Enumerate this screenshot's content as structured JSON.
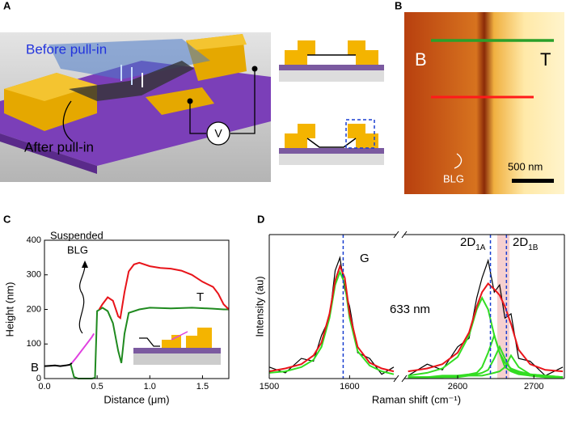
{
  "panel_labels": [
    "A",
    "B",
    "C",
    "D"
  ],
  "panel_a": {
    "before": "Before pull-in",
    "after": "After pull-in",
    "source": "V"
  },
  "panel_b": {
    "left": "B",
    "right": "T",
    "material": "BLG",
    "scale": "500 nm"
  },
  "chart_data": [
    {
      "type": "line",
      "xlabel": "Distance (μm)",
      "ylabel": "Height (nm)",
      "annotations": {
        "suspended": [
          "Suspended",
          "BLG"
        ],
        "left": "B",
        "right": "T"
      },
      "xlim": [
        0,
        1.75
      ],
      "xticks": [
        {
          "value": 0,
          "label": "0.0"
        },
        0.5,
        {
          "value": 1,
          "label": "1.0"
        },
        1.5
      ],
      "ylim": [
        0,
        400
      ],
      "yticks": [
        0,
        100,
        200,
        300,
        400
      ],
      "series": [
        {
          "color": "#000000",
          "x": [
            0,
            0.05,
            0.1,
            0.15,
            0.2,
            0.24,
            0.26
          ],
          "values": [
            36,
            37,
            38,
            36,
            38,
            40,
            45
          ]
        },
        {
          "color": "#1f8a1f",
          "x": [
            0.25,
            0.28,
            0.32,
            0.45,
            0.48,
            0.5,
            0.55,
            0.6,
            0.65,
            0.7,
            0.73,
            0.76,
            0.8,
            0.9,
            1.0,
            1.2,
            1.4,
            1.6,
            1.7,
            1.75
          ],
          "values": [
            40,
            5,
            0,
            0,
            2,
            195,
            205,
            195,
            160,
            80,
            45,
            130,
            190,
            200,
            205,
            203,
            205,
            202,
            200,
            200
          ]
        },
        {
          "color": "#e8141a",
          "x": [
            0.52,
            0.55,
            0.6,
            0.65,
            0.7,
            0.72,
            0.76,
            0.8,
            0.85,
            0.9,
            1.0,
            1.1,
            1.2,
            1.3,
            1.4,
            1.5,
            1.6,
            1.65,
            1.7,
            1.75
          ],
          "values": [
            200,
            215,
            235,
            225,
            180,
            175,
            250,
            310,
            330,
            335,
            325,
            320,
            318,
            312,
            300,
            280,
            265,
            245,
            215,
            200
          ]
        },
        {
          "color": "#e040e0",
          "x": [
            0.26,
            0.3,
            0.35,
            0.4,
            0.45,
            0.47
          ],
          "values": [
            45,
            60,
            80,
            100,
            120,
            130
          ]
        }
      ]
    },
    {
      "type": "spectrum",
      "xlabel": "Raman shift (cm⁻¹)",
      "ylabel": "Intensity (au)",
      "annotations": {
        "g": "G",
        "d1a": {
          "text": "2D",
          "sub": "1A"
        },
        "d1b": {
          "text": "2D",
          "sub": "1B"
        },
        "laser": "633 nm"
      },
      "segments": [
        {
          "xlim": [
            1500,
            1658
          ],
          "xticks": [
            1500,
            1600
          ]
        },
        {
          "xlim": [
            2530,
            2740
          ],
          "xticks": [
            2600,
            2700
          ]
        }
      ],
      "ylim": [
        0,
        1
      ],
      "reference_lines": [
        1592,
        2643,
        2664
      ],
      "band": [
        2652,
        2668
      ],
      "x": [
        1500,
        1520,
        1540,
        1555,
        1565,
        1575,
        1582,
        1588,
        1594,
        1600,
        1610,
        1625,
        1640,
        1655,
        2535,
        2560,
        2580,
        2600,
        2615,
        2625,
        2632,
        2640,
        2648,
        2655,
        2662,
        2670,
        2680,
        2695,
        2715,
        2738
      ],
      "series": [
        {
          "color": "#000000",
          "values": [
            0.08,
            0.04,
            0.14,
            0.12,
            0.3,
            0.42,
            0.75,
            0.84,
            0.62,
            0.5,
            0.18,
            0.14,
            0.03,
            0.08,
            0.02,
            0.1,
            0.06,
            0.22,
            0.28,
            0.56,
            0.7,
            0.82,
            0.6,
            0.65,
            0.42,
            0.45,
            0.14,
            0.12,
            0.02,
            0.08
          ]
        },
        {
          "color": "#33dd22",
          "values": [
            0.04,
            0.05,
            0.08,
            0.13,
            0.22,
            0.42,
            0.65,
            0.74,
            0.66,
            0.42,
            0.19,
            0.09,
            0.05,
            0.03,
            null,
            null,
            null,
            null,
            null,
            null,
            null,
            null,
            null,
            null,
            null,
            null,
            null,
            null,
            null,
            null
          ]
        },
        {
          "color": "#33dd22",
          "values": [
            null,
            null,
            null,
            null,
            null,
            null,
            null,
            null,
            null,
            null,
            null,
            null,
            null,
            null,
            0.02,
            0.04,
            0.07,
            0.15,
            0.3,
            0.48,
            0.56,
            0.48,
            0.3,
            0.18,
            0.11,
            0.07,
            0.05,
            0.03,
            0.02,
            0.01
          ]
        },
        {
          "color": "#33dd22",
          "values": [
            null,
            null,
            null,
            null,
            null,
            null,
            null,
            null,
            null,
            null,
            null,
            null,
            null,
            null,
            0.01,
            0.01,
            0.02,
            0.02,
            0.03,
            0.04,
            0.08,
            0.18,
            0.3,
            0.18,
            0.08,
            0.05,
            0.03,
            0.02,
            0.01,
            0.01
          ]
        },
        {
          "color": "#33dd22",
          "values": [
            null,
            null,
            null,
            null,
            null,
            null,
            null,
            null,
            null,
            null,
            null,
            null,
            null,
            null,
            0.01,
            0.01,
            0.01,
            0.02,
            0.02,
            0.03,
            0.04,
            0.06,
            0.14,
            0.22,
            0.14,
            0.06,
            0.04,
            0.02,
            0.01,
            0.01
          ]
        },
        {
          "color": "#33dd22",
          "values": [
            null,
            null,
            null,
            null,
            null,
            null,
            null,
            null,
            null,
            null,
            null,
            null,
            null,
            null,
            0.01,
            0.01,
            0.01,
            0.01,
            0.02,
            0.02,
            0.02,
            0.03,
            0.04,
            0.05,
            0.08,
            0.16,
            0.08,
            0.03,
            0.02,
            0.01
          ]
        },
        {
          "color": "#e8141a",
          "values": [
            0.05,
            0.07,
            0.1,
            0.16,
            0.25,
            0.45,
            0.68,
            0.78,
            0.7,
            0.45,
            0.22,
            0.11,
            0.07,
            0.05,
            0.05,
            0.07,
            0.1,
            0.18,
            0.32,
            0.5,
            0.6,
            0.66,
            0.62,
            0.58,
            0.5,
            0.38,
            0.2,
            0.1,
            0.06,
            0.05
          ]
        }
      ]
    }
  ]
}
